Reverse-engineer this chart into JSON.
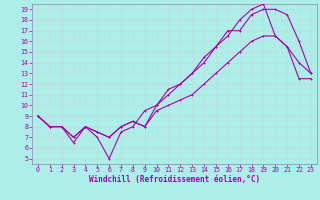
{
  "xlabel": "Windchill (Refroidissement éolien,°C)",
  "bg_color": "#aeeee8",
  "grid_color": "#cceeee",
  "line_color": "#aa00aa",
  "spine_color": "#8888aa",
  "xlim": [
    -0.5,
    23.5
  ],
  "ylim": [
    4.5,
    19.5
  ],
  "xticks": [
    0,
    1,
    2,
    3,
    4,
    5,
    6,
    7,
    8,
    9,
    10,
    11,
    12,
    13,
    14,
    15,
    16,
    17,
    18,
    19,
    20,
    21,
    22,
    23
  ],
  "yticks": [
    5,
    6,
    7,
    8,
    9,
    10,
    11,
    12,
    13,
    14,
    15,
    16,
    17,
    18,
    19
  ],
  "curve1_x": [
    0,
    1,
    2,
    3,
    4,
    5,
    6,
    7,
    8,
    9,
    10,
    11,
    12,
    13,
    14,
    15,
    16,
    17,
    18,
    19,
    20,
    21,
    22,
    23
  ],
  "curve1_y": [
    9,
    8,
    8,
    6.5,
    8,
    7,
    5,
    7.5,
    8,
    9.5,
    10,
    11.5,
    12,
    13,
    14,
    15.5,
    17,
    17,
    18.5,
    19,
    19,
    18.5,
    16,
    13
  ],
  "curve2_x": [
    0,
    1,
    2,
    3,
    4,
    5,
    6,
    7,
    8,
    9,
    10,
    11,
    12,
    13,
    14,
    15,
    16,
    17,
    18,
    19,
    20,
    21,
    22,
    23
  ],
  "curve2_y": [
    9,
    8,
    8,
    7,
    8,
    7.5,
    7,
    8,
    8.5,
    8,
    10,
    11,
    12,
    13,
    14.5,
    15.5,
    16.5,
    18,
    19,
    19.5,
    16.5,
    15.5,
    14,
    13
  ],
  "curve3_x": [
    0,
    1,
    2,
    3,
    4,
    5,
    6,
    7,
    8,
    9,
    10,
    11,
    12,
    13,
    14,
    15,
    16,
    17,
    18,
    19,
    20,
    21,
    22,
    23
  ],
  "curve3_y": [
    9,
    8,
    8,
    7,
    8,
    7.5,
    7,
    8,
    8.5,
    8,
    9.5,
    10,
    10.5,
    11,
    12,
    13,
    14,
    15,
    16,
    16.5,
    16.5,
    15.5,
    12.5,
    12.5
  ],
  "xlabel_fontsize": 5.5,
  "tick_fontsize": 4.8
}
